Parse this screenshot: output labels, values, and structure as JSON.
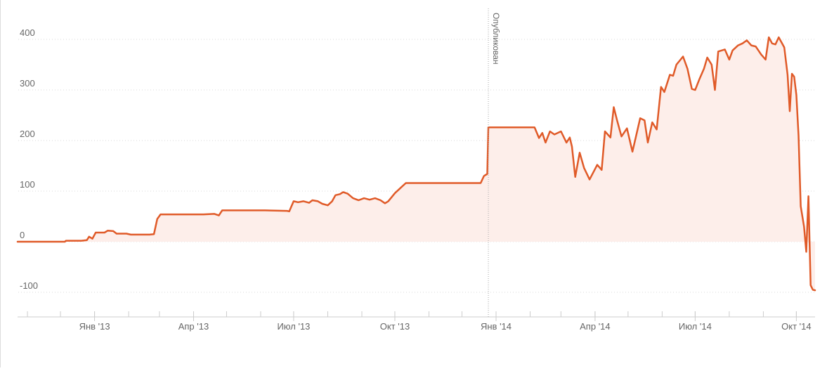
{
  "chart_data": {
    "type": "area",
    "title": "",
    "xlabel": "",
    "ylabel": "",
    "ylim": [
      -130,
      430
    ],
    "y_ticks": [
      {
        "value": -100,
        "label": "-100"
      },
      {
        "value": 0,
        "label": "0"
      },
      {
        "value": 100,
        "label": "100"
      },
      {
        "value": 200,
        "label": "200"
      },
      {
        "value": 300,
        "label": "300"
      },
      {
        "value": 400,
        "label": "400"
      }
    ],
    "x_ticks": [
      {
        "date": "2013-01-01",
        "label": "Янв '13"
      },
      {
        "date": "2013-04-01",
        "label": "Апр '13"
      },
      {
        "date": "2013-07-01",
        "label": "Июл '13"
      },
      {
        "date": "2013-10-01",
        "label": "Окт '13"
      },
      {
        "date": "2014-01-01",
        "label": "Янв '14"
      },
      {
        "date": "2014-04-01",
        "label": "Апр '14"
      },
      {
        "date": "2014-07-01",
        "label": "Июл '14"
      },
      {
        "date": "2014-10-01",
        "label": "Окт '14"
      }
    ],
    "x_range": [
      "2012-10-23",
      "2014-10-18"
    ],
    "grid": true,
    "annotation": {
      "date": "2013-12-25",
      "label": "Опубликован"
    },
    "series": [
      {
        "line_color": "#e05a28",
        "fill_color": "#fdeeea",
        "points": [
          [
            "2012-10-23",
            0
          ],
          [
            "2012-12-05",
            0
          ],
          [
            "2012-12-06",
            2
          ],
          [
            "2012-12-20",
            2
          ],
          [
            "2012-12-25",
            3
          ],
          [
            "2012-12-27",
            10
          ],
          [
            "2012-12-30",
            6
          ],
          [
            "2013-01-02",
            18
          ],
          [
            "2013-01-10",
            18
          ],
          [
            "2013-01-13",
            22
          ],
          [
            "2013-01-18",
            21
          ],
          [
            "2013-01-21",
            16
          ],
          [
            "2013-01-30",
            16
          ],
          [
            "2013-02-03",
            14
          ],
          [
            "2013-02-20",
            14
          ],
          [
            "2013-02-24",
            15
          ],
          [
            "2013-02-27",
            45
          ],
          [
            "2013-03-02",
            54
          ],
          [
            "2013-04-10",
            54
          ],
          [
            "2013-04-20",
            55
          ],
          [
            "2013-04-24",
            52
          ],
          [
            "2013-04-27",
            62
          ],
          [
            "2013-05-10",
            62
          ],
          [
            "2013-06-05",
            62
          ],
          [
            "2013-06-25",
            61
          ],
          [
            "2013-06-27",
            60
          ],
          [
            "2013-07-01",
            80
          ],
          [
            "2013-07-05",
            78
          ],
          [
            "2013-07-10",
            80
          ],
          [
            "2013-07-15",
            77
          ],
          [
            "2013-07-18",
            82
          ],
          [
            "2013-07-23",
            80
          ],
          [
            "2013-07-27",
            75
          ],
          [
            "2013-08-01",
            72
          ],
          [
            "2013-08-05",
            80
          ],
          [
            "2013-08-08",
            92
          ],
          [
            "2013-08-12",
            94
          ],
          [
            "2013-08-15",
            98
          ],
          [
            "2013-08-19",
            95
          ],
          [
            "2013-08-24",
            86
          ],
          [
            "2013-08-29",
            82
          ],
          [
            "2013-09-03",
            86
          ],
          [
            "2013-09-08",
            83
          ],
          [
            "2013-09-13",
            86
          ],
          [
            "2013-09-18",
            82
          ],
          [
            "2013-09-22",
            76
          ],
          [
            "2013-09-25",
            80
          ],
          [
            "2013-10-01",
            96
          ],
          [
            "2013-10-07",
            108
          ],
          [
            "2013-10-11",
            116
          ],
          [
            "2013-11-15",
            116
          ],
          [
            "2013-12-18",
            116
          ],
          [
            "2013-12-21",
            130
          ],
          [
            "2013-12-24",
            134
          ],
          [
            "2013-12-25",
            226
          ],
          [
            "2014-01-20",
            226
          ],
          [
            "2014-02-05",
            226
          ],
          [
            "2014-02-09",
            205
          ],
          [
            "2014-02-12",
            215
          ],
          [
            "2014-02-15",
            196
          ],
          [
            "2014-02-19",
            218
          ],
          [
            "2014-02-23",
            212
          ],
          [
            "2014-03-01",
            218
          ],
          [
            "2014-03-06",
            196
          ],
          [
            "2014-03-09",
            206
          ],
          [
            "2014-03-11",
            188
          ],
          [
            "2014-03-14",
            128
          ],
          [
            "2014-03-18",
            176
          ],
          [
            "2014-03-22",
            146
          ],
          [
            "2014-03-27",
            123
          ],
          [
            "2014-04-03",
            152
          ],
          [
            "2014-04-07",
            142
          ],
          [
            "2014-04-10",
            218
          ],
          [
            "2014-04-15",
            206
          ],
          [
            "2014-04-18",
            266
          ],
          [
            "2014-04-21",
            240
          ],
          [
            "2014-04-25",
            208
          ],
          [
            "2014-04-30",
            224
          ],
          [
            "2014-05-05",
            178
          ],
          [
            "2014-05-08",
            206
          ],
          [
            "2014-05-12",
            244
          ],
          [
            "2014-05-16",
            240
          ],
          [
            "2014-05-19",
            196
          ],
          [
            "2014-05-23",
            236
          ],
          [
            "2014-05-27",
            222
          ],
          [
            "2014-05-31",
            306
          ],
          [
            "2014-06-03",
            296
          ],
          [
            "2014-06-08",
            330
          ],
          [
            "2014-06-11",
            328
          ],
          [
            "2014-06-14",
            350
          ],
          [
            "2014-06-20",
            366
          ],
          [
            "2014-06-24",
            342
          ],
          [
            "2014-06-28",
            302
          ],
          [
            "2014-07-01",
            300
          ],
          [
            "2014-07-05",
            322
          ],
          [
            "2014-07-09",
            342
          ],
          [
            "2014-07-12",
            364
          ],
          [
            "2014-07-16",
            350
          ],
          [
            "2014-07-19",
            300
          ],
          [
            "2014-07-22",
            376
          ],
          [
            "2014-07-28",
            380
          ],
          [
            "2014-08-01",
            360
          ],
          [
            "2014-08-04",
            378
          ],
          [
            "2014-08-09",
            388
          ],
          [
            "2014-08-13",
            392
          ],
          [
            "2014-08-17",
            398
          ],
          [
            "2014-08-21",
            388
          ],
          [
            "2014-08-25",
            386
          ],
          [
            "2014-08-30",
            370
          ],
          [
            "2014-09-03",
            360
          ],
          [
            "2014-09-06",
            404
          ],
          [
            "2014-09-09",
            392
          ],
          [
            "2014-09-12",
            390
          ],
          [
            "2014-09-15",
            404
          ],
          [
            "2014-09-17",
            396
          ],
          [
            "2014-09-20",
            384
          ],
          [
            "2014-09-23",
            330
          ],
          [
            "2014-09-25",
            258
          ],
          [
            "2014-09-27",
            332
          ],
          [
            "2014-09-29",
            326
          ],
          [
            "2014-10-01",
            290
          ],
          [
            "2014-10-03",
            210
          ],
          [
            "2014-10-05",
            70
          ],
          [
            "2014-10-08",
            30
          ],
          [
            "2014-10-10",
            -20
          ],
          [
            "2014-10-12",
            90
          ],
          [
            "2014-10-14",
            -86
          ],
          [
            "2014-10-16",
            -95
          ],
          [
            "2014-10-18",
            -96
          ]
        ]
      }
    ]
  }
}
